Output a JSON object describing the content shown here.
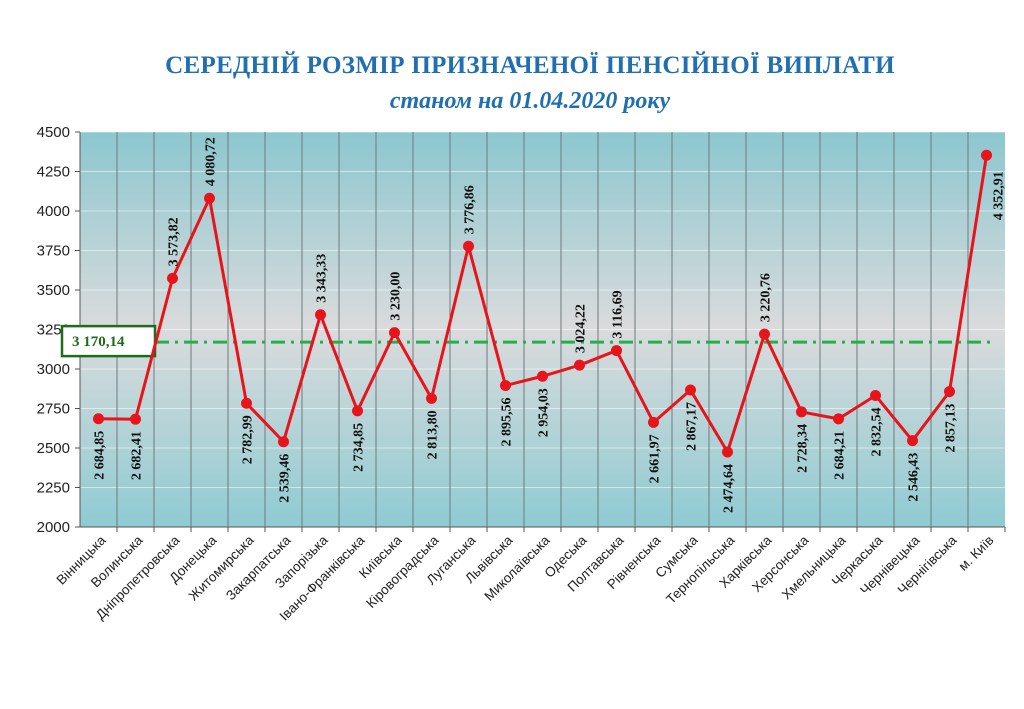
{
  "chart_data": {
    "type": "line",
    "title": "СЕРЕДНІЙ РОЗМІР ПРИЗНАЧЕНОЇ ПЕНСІЙНОЇ ВИПЛАТИ",
    "subtitle": "станом на 01.04.2020 року",
    "xlabel": "",
    "ylabel": "",
    "ylim": [
      2000,
      4500
    ],
    "yticks": [
      2000,
      2250,
      2500,
      2750,
      3000,
      3250,
      3500,
      3750,
      4000,
      4250,
      4500
    ],
    "grid": true,
    "categories": [
      "Вінницька",
      "Волинська",
      "Дніпропетровська",
      "Донецька",
      "Житомирська",
      "Закарпатська",
      "Запорізька",
      "Івано-Франківська",
      "Київська",
      "Кіровоградська",
      "Луганська",
      "Львівська",
      "Миколаївська",
      "Одеська",
      "Полтавська",
      "Рівненська",
      "Сумська",
      "Тернопільська",
      "Харківська",
      "Херсонська",
      "Хмельницька",
      "Черкаська",
      "Чернівецька",
      "Чернігівська",
      "м. Київ"
    ],
    "values": [
      2684.85,
      2682.41,
      3573.82,
      4080.72,
      2782.99,
      2539.46,
      3343.33,
      2734.85,
      3230.0,
      2813.8,
      3776.86,
      2895.56,
      2954.03,
      3024.22,
      3116.69,
      2661.97,
      2867.17,
      2474.64,
      3220.76,
      2728.34,
      2684.21,
      2832.54,
      2546.43,
      2857.13,
      4352.91
    ],
    "data_labels": [
      "2 684,85",
      "2 682,41",
      "3 573,82",
      "4 080,72",
      "2 782,99",
      "2 539,46",
      "3 343,33",
      "2 734,85",
      "3 230,00",
      "2 813,80",
      "3 776,86",
      "2 895,56",
      "2 954,03",
      "3 024,22",
      "3 116,69",
      "2 661,97",
      "2 867,17",
      "2 474,64",
      "3 220,76",
      "2 728,34",
      "2 684,21",
      "2 832,54",
      "2 546,43",
      "2 857,13",
      "4 352,91"
    ],
    "average": {
      "value": 3170.14,
      "label": "3 170,14"
    },
    "colors": {
      "line": "#e8141b",
      "average": "#22b04b",
      "title": "#1f6fb2",
      "avg_box": "#1e6b1e"
    }
  }
}
